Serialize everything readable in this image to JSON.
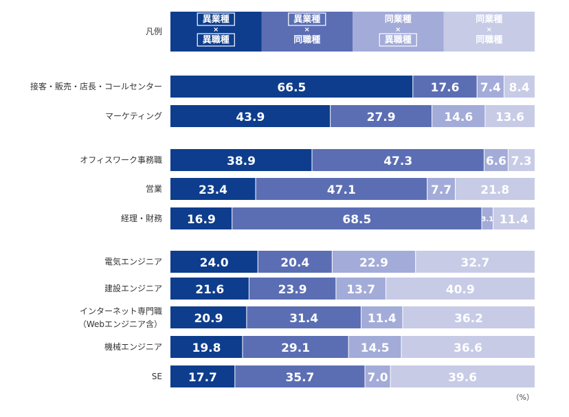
{
  "chart_data": {
    "type": "bar",
    "orientation": "horizontal",
    "stacked": true,
    "unit": "（%）",
    "legend": {
      "row_label": "凡例",
      "placement": "top",
      "entries": [
        {
          "line1": "異業種",
          "cross": "×",
          "line2": "異職種",
          "boxed1": true,
          "boxed2": true
        },
        {
          "line1": "異業種",
          "cross": "×",
          "line2": "同職種",
          "boxed1": true,
          "boxed2": false
        },
        {
          "line1": "同業種",
          "cross": "×",
          "line2": "異職種",
          "boxed1": false,
          "boxed2": true
        },
        {
          "line1": "同業種",
          "cross": "×",
          "line2": "同職種",
          "boxed1": false,
          "boxed2": false
        }
      ]
    },
    "colors": [
      "#0e3d8d",
      "#5b6eb4",
      "#a3abd8",
      "#c7cbe6"
    ],
    "label_colors": [
      "#ffffff",
      "#ffffff",
      "#ffffff",
      "#ffffff"
    ],
    "categories": [
      {
        "label": "接客・販売・店長・コールセンター",
        "values": [
          66.5,
          17.6,
          7.4,
          8.4
        ],
        "labels": [
          "66.5",
          "17.6",
          "7.4",
          "8.4"
        ]
      },
      {
        "label": "マーケティング",
        "values": [
          43.9,
          27.9,
          14.6,
          13.6
        ],
        "labels": [
          "43.9",
          "27.9",
          "14.6",
          "13.6"
        ]
      },
      {
        "label": "オフィスワーク事務職",
        "values": [
          38.9,
          47.3,
          6.6,
          7.3
        ],
        "labels": [
          "38.9",
          "47.3",
          "6.6",
          "7.3"
        ]
      },
      {
        "label": "営業",
        "values": [
          23.4,
          47.1,
          7.7,
          21.8
        ],
        "labels": [
          "23.4",
          "47.1",
          "7.7",
          "21.8"
        ]
      },
      {
        "label": "経理・財務",
        "values": [
          16.9,
          68.5,
          3.1,
          11.4
        ],
        "labels": [
          "16.9",
          "68.5",
          "3.1",
          "11.4"
        ]
      },
      {
        "label": "電気エンジニア",
        "values": [
          24.0,
          20.4,
          22.9,
          32.7
        ],
        "labels": [
          "24.0",
          "20.4",
          "22.9",
          "32.7"
        ]
      },
      {
        "label": "建設エンジニア",
        "values": [
          21.6,
          23.9,
          13.7,
          40.9
        ],
        "labels": [
          "21.6",
          "23.9",
          "13.7",
          "40.9"
        ]
      },
      {
        "label": "インターネット専門職",
        "label2": "（Webエンジニア含）",
        "values": [
          20.9,
          31.4,
          11.4,
          36.2
        ],
        "labels": [
          "20.9",
          "31.4",
          "11.4",
          "36.2"
        ]
      },
      {
        "label": "機械エンジニア",
        "values": [
          19.8,
          29.1,
          14.5,
          36.6
        ],
        "labels": [
          "19.8",
          "29.1",
          "14.5",
          "36.6"
        ]
      },
      {
        "label": "SE",
        "values": [
          17.7,
          35.7,
          7.0,
          39.6
        ],
        "labels": [
          "17.7",
          "35.7",
          "7.0",
          "39.6"
        ]
      }
    ],
    "xlim": [
      0,
      100
    ],
    "grid": false
  }
}
